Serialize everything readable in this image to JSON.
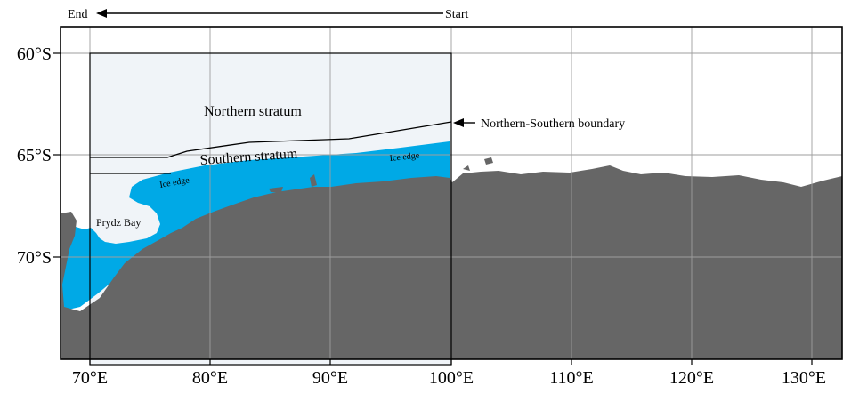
{
  "map": {
    "lat_labels": [
      "60°S",
      "65°S",
      "70°S"
    ],
    "lon_labels": [
      "70°E",
      "80°E",
      "90°E",
      "100°E",
      "110°E",
      "120°E",
      "130°E"
    ],
    "transect": {
      "end_label": "End",
      "start_label": "Start"
    },
    "annotations": {
      "northern_stratum": "Northern stratum",
      "southern_stratum": "Southern stratum",
      "boundary": "Northern-Southern boundary",
      "ice_edge": "Ice edge",
      "prydz_bay": "Prydz Bay"
    },
    "colors": {
      "land": "#666666",
      "sea_ice": "#00A9E6",
      "study_area": "#F0F4F8",
      "ocean": "#FFFFFF",
      "grid": "#9E9E9E",
      "outline": "#000000"
    }
  }
}
